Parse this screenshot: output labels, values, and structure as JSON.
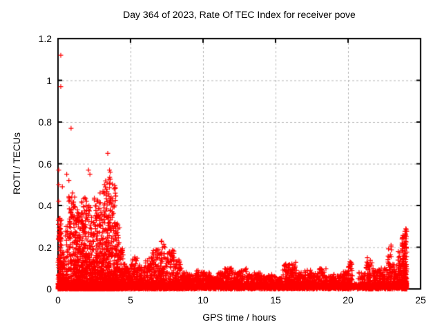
{
  "chart_data": {
    "type": "scatter",
    "title": "Day 364 of 2023, Rate Of TEC Index for receiver pove",
    "xlabel": "GPS time / hours",
    "ylabel": "ROTI / TECUs",
    "xlim": [
      0,
      25
    ],
    "ylim": [
      0,
      1.2
    ],
    "xtick_values": [
      0,
      5,
      10,
      15,
      20,
      25
    ],
    "xtick_labels": [
      "0",
      "5",
      "10",
      "15",
      "20",
      "25"
    ],
    "ytick_values": [
      0,
      0.2,
      0.4,
      0.6,
      0.8,
      1,
      1.2
    ],
    "ytick_labels": [
      "0",
      "0.2",
      "0.4",
      "0.6",
      "0.8",
      "1",
      "1.2"
    ],
    "grid": {
      "show": true,
      "color": "#b5b5b5",
      "dash": [
        3,
        3
      ]
    },
    "axis_color": "#000000",
    "background": "#ffffff",
    "legend": "none",
    "marker": {
      "shape": "plus",
      "color": "#ff0000",
      "size": 7
    },
    "series_name": "ROTI",
    "seed": 42,
    "outliers": [
      [
        0.19,
        1.12
      ],
      [
        0.19,
        0.97
      ],
      [
        0.9,
        0.77
      ],
      [
        3.43,
        0.65
      ],
      [
        0.05,
        0.57
      ],
      [
        0.05,
        0.5
      ],
      [
        0.05,
        0.42
      ],
      [
        0.3,
        0.49
      ],
      [
        0.6,
        0.55
      ],
      [
        0.75,
        0.52
      ],
      [
        2.1,
        0.57
      ],
      [
        2.2,
        0.55
      ],
      [
        3.55,
        0.57
      ],
      [
        3.6,
        0.56
      ],
      [
        1.0,
        0.46
      ],
      [
        1.15,
        0.44
      ],
      [
        2.9,
        0.46
      ],
      [
        3.2,
        0.5
      ]
    ],
    "density_bins": [
      [
        0.0,
        0.25,
        0.36,
        150
      ],
      [
        0.25,
        0.5,
        0.18,
        60
      ],
      [
        0.5,
        0.75,
        0.3,
        60
      ],
      [
        0.75,
        1.0,
        0.45,
        100
      ],
      [
        1.0,
        1.25,
        0.43,
        110
      ],
      [
        1.25,
        1.5,
        0.38,
        110
      ],
      [
        1.5,
        1.75,
        0.42,
        120
      ],
      [
        1.75,
        2.0,
        0.45,
        120
      ],
      [
        2.0,
        2.25,
        0.4,
        110
      ],
      [
        2.25,
        2.5,
        0.35,
        100
      ],
      [
        2.5,
        2.75,
        0.44,
        110
      ],
      [
        2.75,
        3.0,
        0.42,
        110
      ],
      [
        3.0,
        3.25,
        0.48,
        120
      ],
      [
        3.25,
        3.5,
        0.52,
        120
      ],
      [
        3.5,
        3.75,
        0.55,
        120
      ],
      [
        3.75,
        4.0,
        0.5,
        110
      ],
      [
        4.0,
        4.25,
        0.32,
        90
      ],
      [
        4.25,
        4.5,
        0.2,
        70
      ],
      [
        4.5,
        4.75,
        0.12,
        55
      ],
      [
        4.75,
        5.0,
        0.1,
        55
      ],
      [
        5.0,
        5.5,
        0.16,
        85
      ],
      [
        5.5,
        6.0,
        0.12,
        85
      ],
      [
        6.0,
        6.5,
        0.15,
        85
      ],
      [
        6.5,
        7.0,
        0.2,
        95
      ],
      [
        7.0,
        7.5,
        0.23,
        105
      ],
      [
        7.5,
        8.0,
        0.19,
        95
      ],
      [
        8.0,
        8.5,
        0.15,
        85
      ],
      [
        8.5,
        9.0,
        0.08,
        75
      ],
      [
        9.0,
        9.5,
        0.07,
        70
      ],
      [
        9.5,
        10.0,
        0.09,
        70
      ],
      [
        10.0,
        10.5,
        0.08,
        70
      ],
      [
        10.5,
        11.0,
        0.06,
        70
      ],
      [
        11.0,
        11.5,
        0.08,
        70
      ],
      [
        11.5,
        12.0,
        0.1,
        75
      ],
      [
        12.0,
        12.5,
        0.08,
        70
      ],
      [
        12.5,
        13.0,
        0.1,
        70
      ],
      [
        13.0,
        13.5,
        0.07,
        70
      ],
      [
        13.5,
        14.0,
        0.08,
        70
      ],
      [
        14.0,
        14.5,
        0.06,
        65
      ],
      [
        14.5,
        15.0,
        0.07,
        65
      ],
      [
        15.0,
        15.5,
        0.06,
        65
      ],
      [
        15.5,
        16.0,
        0.12,
        75
      ],
      [
        16.0,
        16.5,
        0.13,
        75
      ],
      [
        16.5,
        17.0,
        0.08,
        65
      ],
      [
        17.0,
        17.5,
        0.09,
        65
      ],
      [
        17.5,
        18.0,
        0.08,
        65
      ],
      [
        18.0,
        18.5,
        0.1,
        65
      ],
      [
        18.5,
        19.0,
        0.06,
        60
      ],
      [
        19.0,
        19.5,
        0.07,
        60
      ],
      [
        19.5,
        20.0,
        0.09,
        70
      ],
      [
        20.0,
        20.3,
        0.13,
        50
      ],
      [
        20.3,
        20.7,
        0.03,
        12
      ],
      [
        20.7,
        21.2,
        0.08,
        60
      ],
      [
        21.2,
        21.7,
        0.15,
        70
      ],
      [
        21.7,
        22.2,
        0.1,
        65
      ],
      [
        22.2,
        22.7,
        0.1,
        65
      ],
      [
        22.7,
        23.0,
        0.22,
        60
      ],
      [
        23.0,
        23.4,
        0.12,
        60
      ],
      [
        23.4,
        23.7,
        0.18,
        75
      ],
      [
        23.7,
        23.9,
        0.26,
        85
      ],
      [
        23.9,
        24.05,
        0.3,
        130
      ]
    ],
    "floor_band": {
      "ymax": 0.028,
      "fraction": 0.55
    }
  }
}
